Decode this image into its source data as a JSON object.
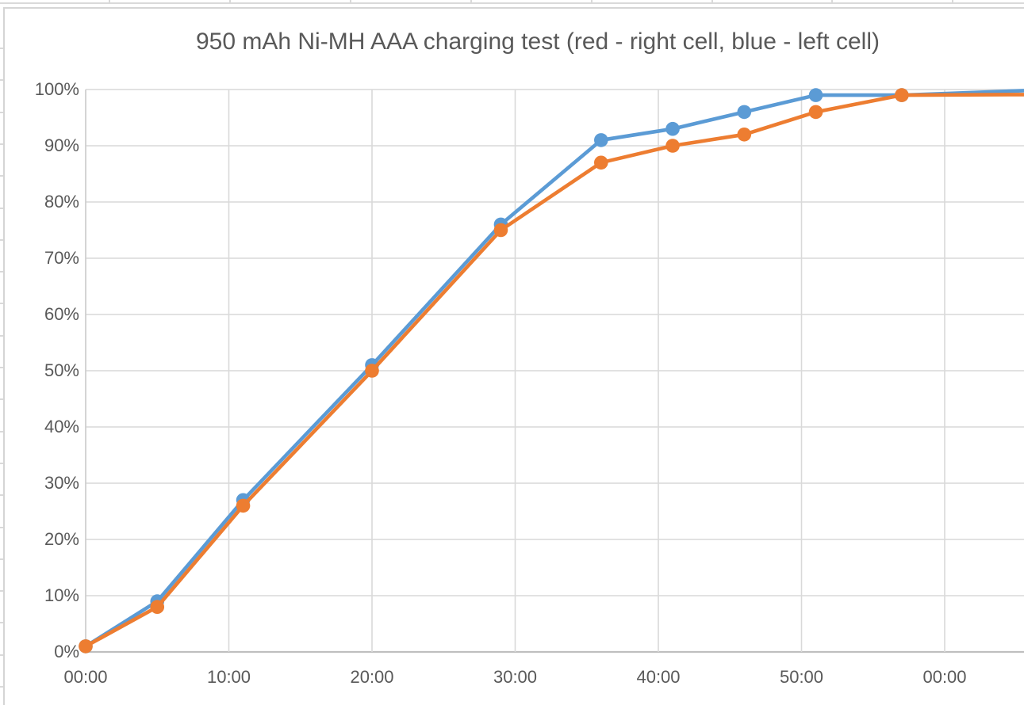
{
  "chart_data": {
    "type": "line",
    "title": "950 mAh Ni-MH AAA charging test (red - right cell, blue - left cell)",
    "x_tick_labels": [
      "00:00",
      "10:00",
      "20:00",
      "30:00",
      "40:00",
      "50:00",
      "00:00"
    ],
    "x_tick_minutes": [
      0,
      10,
      20,
      30,
      40,
      50,
      60
    ],
    "y_tick_labels": [
      "0%",
      "10%",
      "20%",
      "30%",
      "40%",
      "50%",
      "60%",
      "70%",
      "80%",
      "90%",
      "100%"
    ],
    "y_axis": {
      "min": 0,
      "max": 100,
      "step": 10
    },
    "x_minutes": [
      0,
      5,
      11,
      20,
      29,
      36,
      41,
      46,
      51,
      57
    ],
    "series": [
      {
        "name": "left cell",
        "legend_note": "blue - left cell",
        "color": "#5B9BD5",
        "values": [
          1,
          9,
          27,
          51,
          76,
          91,
          93,
          96,
          99,
          99
        ],
        "value_at_right_crop": 99.8
      },
      {
        "name": "right cell",
        "legend_note": "red - right cell",
        "color": "#ED7D31",
        "values": [
          1,
          8,
          26,
          50,
          75,
          87,
          90,
          92,
          96,
          99
        ],
        "value_at_right_crop": 99.1
      }
    ],
    "grid": "both",
    "legend_position": "none",
    "markers": "filled-circle"
  },
  "colors": {
    "gridline": "#d9d9d9",
    "axis_line": "#bfbfbf",
    "y_axis_line": "#cfcfcf",
    "label_text": "#595959",
    "chart_border": "#d5d5d5",
    "background": "#ffffff"
  }
}
